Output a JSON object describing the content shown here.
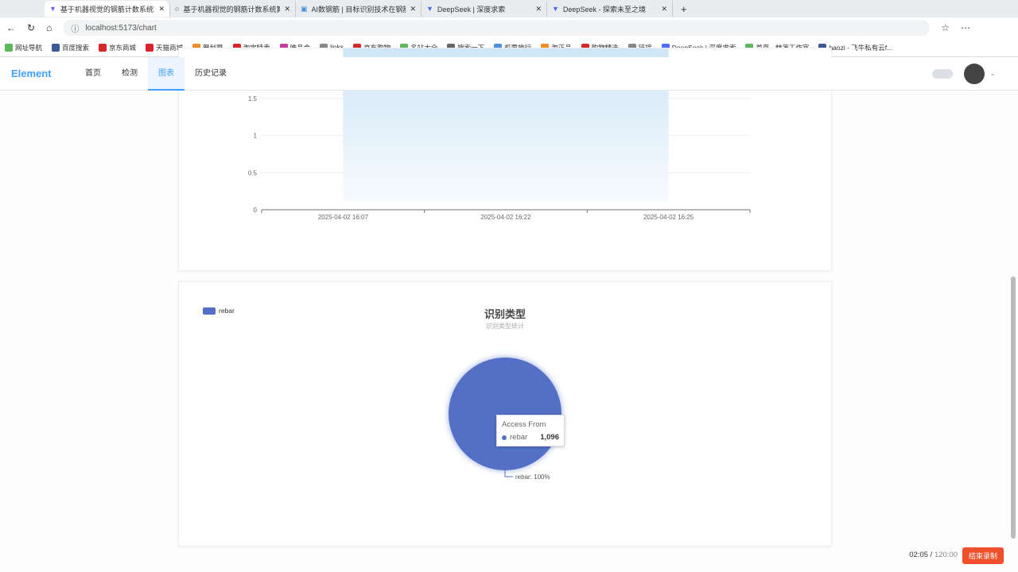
{
  "browser": {
    "tabs": [
      {
        "title": "基于机器视觉的钢筋计数系统算法",
        "active": true
      },
      {
        "title": "基于机器视觉的钢筋计数系统算法"
      },
      {
        "title": "AI数钢筋 | 目标识别技术在钢筋计数"
      },
      {
        "title": "DeepSeek | 深度求索"
      },
      {
        "title": "DeepSeek - 探索未至之境"
      }
    ],
    "url": "localhost:5173/chart",
    "bookmarks": [
      "网址导航",
      "百度搜索",
      "京东商城",
      "天猫商城",
      "聚划算",
      "淘宝特卖",
      "唯品会",
      "links",
      "京东购物",
      "名站大全",
      "搜索一下",
      "机票旅行",
      "淘正品",
      "购物精选",
      "链接",
      "DeepSeek | 深度求索",
      "首页 - 赫莲工作室",
      "haozi - 飞牛私有云f..."
    ]
  },
  "nav": {
    "logo": "Element",
    "items": [
      {
        "label": "首页"
      },
      {
        "label": "检测"
      },
      {
        "label": "图表",
        "active": true
      },
      {
        "label": "历史记录"
      }
    ]
  },
  "chart_data": [
    {
      "type": "area",
      "categories": [
        "2025-04-02 16:07",
        "2025-04-02 16:22",
        "2025-04-02 16:25"
      ],
      "y_ticks": [
        "0",
        "0.5",
        "1",
        "1.5"
      ],
      "ylim": [
        0,
        1.5
      ],
      "color": "#a8d4f0"
    },
    {
      "type": "pie",
      "title": "识别类型",
      "subtitle": "识别类型统计",
      "legend": [
        "rebar"
      ],
      "legend_position": "top-left",
      "slices": [
        {
          "name": "rebar",
          "value": 1096
        }
      ],
      "label": "rebar: 100%",
      "color": "#5470c6",
      "tooltip": {
        "title": "Access From",
        "name": "rebar",
        "value": "1,096"
      }
    }
  ],
  "recording": {
    "time": "02:05",
    "total": "120:00",
    "stop_label": "结束录制"
  }
}
